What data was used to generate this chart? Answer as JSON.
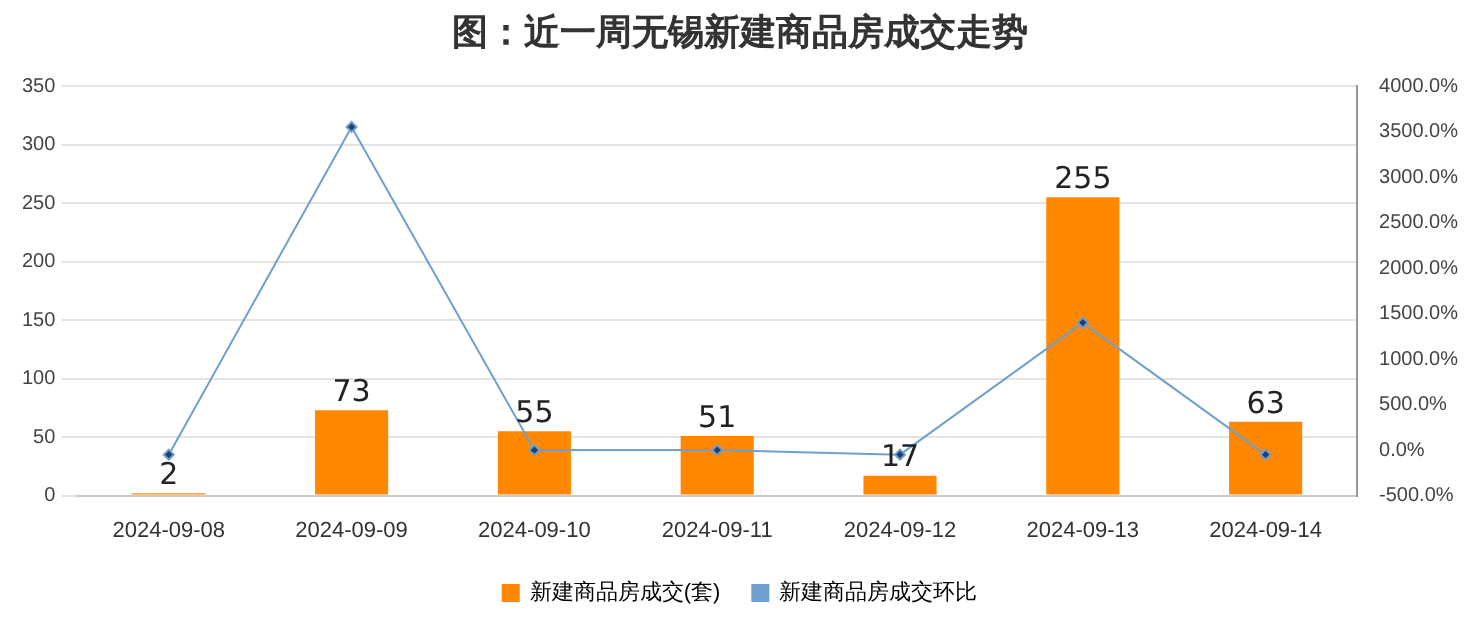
{
  "chart_data": {
    "type": "bar",
    "title": "图：近一周无锡新建商品房成交走势",
    "categories": [
      "2024-09-08",
      "2024-09-09",
      "2024-09-10",
      "2024-09-11",
      "2024-09-12",
      "2024-09-13",
      "2024-09-14"
    ],
    "series": [
      {
        "name": "新建商品房成交(套)",
        "color": "#ff8800",
        "values": [
          2,
          73,
          55,
          51,
          17,
          255,
          63
        ],
        "value_labels": [
          "2",
          "73",
          "55",
          "51",
          "17",
          "255",
          "63"
        ]
      },
      {
        "name": "新建商品房成交环比",
        "type": "line",
        "axis": "y2",
        "color": "#6f9fcf",
        "marker": "diamond",
        "values": [
          -50,
          3550,
          0,
          0,
          -50,
          1400,
          -50
        ]
      }
    ],
    "ylim": [
      0,
      350
    ],
    "yticks": [
      0,
      50,
      100,
      150,
      200,
      250,
      300,
      350
    ],
    "y2lim": [
      -500,
      4000
    ],
    "y2ticks": [
      {
        "value": -500,
        "label": "-500.0%"
      },
      {
        "value": 0,
        "label": "0.0%"
      },
      {
        "value": 500,
        "label": "500.0%"
      },
      {
        "value": 1000,
        "label": "1000.0%"
      },
      {
        "value": 1500,
        "label": "1500.0%"
      },
      {
        "value": 2000,
        "label": "2000.0%"
      },
      {
        "value": 2500,
        "label": "2500.0%"
      },
      {
        "value": 3000,
        "label": "3000.0%"
      },
      {
        "value": 3500,
        "label": "3500.0%"
      },
      {
        "value": 4000,
        "label": "4000.0%"
      }
    ],
    "grid": "y",
    "legend": "bottom"
  }
}
